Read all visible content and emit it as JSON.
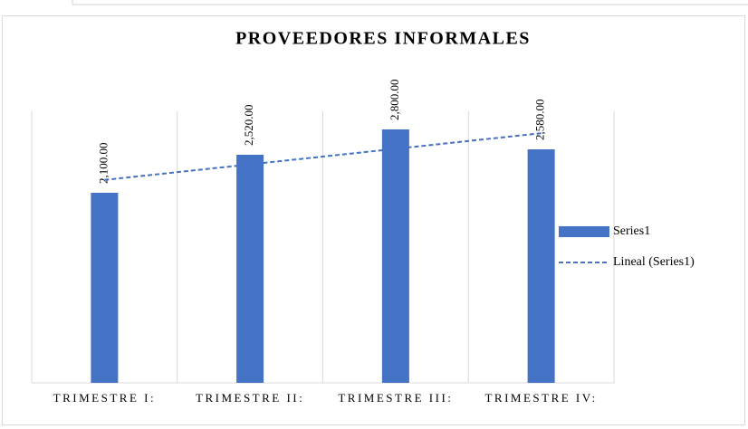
{
  "chart_data": {
    "type": "bar",
    "title": "PROVEEDORES INFORMALES",
    "categories": [
      "TRIMESTRE I:",
      "TRIMESTRE II:",
      "TRIMESTRE III:",
      "TRIMESTRE IV:"
    ],
    "series": [
      {
        "name": "Series1",
        "color": "#4472c4",
        "values": [
          2100,
          2520,
          2800,
          2580
        ],
        "value_labels": [
          "2,100.00",
          "2,520.00",
          "2,800.00",
          "2,580.00"
        ]
      },
      {
        "name": "Lineal (Series1)",
        "color": "#4472c4",
        "values": [
          2242,
          2414,
          2586,
          2758
        ]
      }
    ],
    "ylim": [
      0,
      3000
    ],
    "grid": true,
    "legend": "right"
  }
}
